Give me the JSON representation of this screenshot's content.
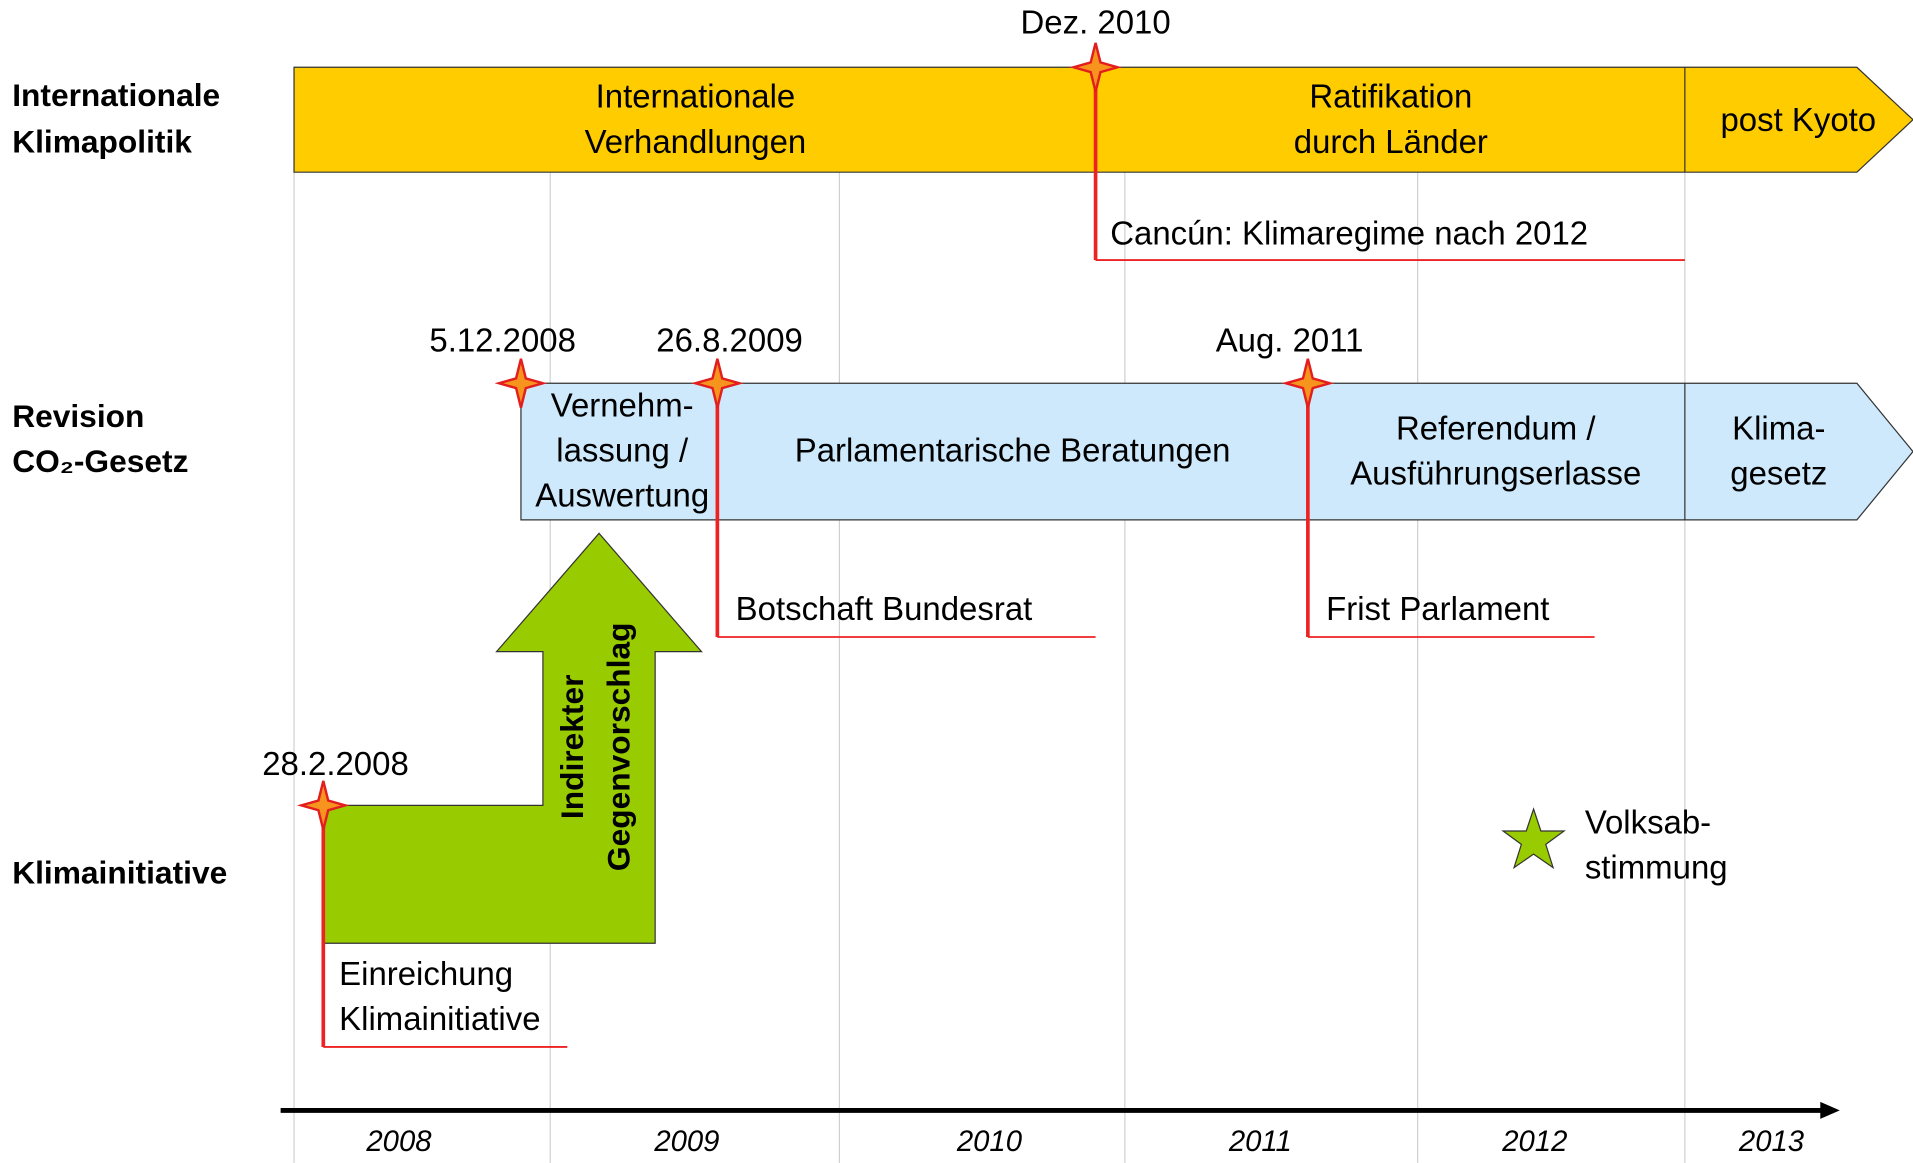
{
  "rows": [
    {
      "label": [
        "Internationale",
        "Klimapolitik"
      ]
    },
    {
      "label": [
        "Revision",
        "CO₂-Gesetz"
      ]
    },
    {
      "label": [
        "Klimainitiative"
      ]
    }
  ],
  "bar1": {
    "segments": [
      [
        "Internationale",
        "Verhandlungen"
      ],
      [
        "Ratifikation",
        "durch Länder"
      ],
      [
        "post Kyoto"
      ]
    ]
  },
  "bar2": {
    "segments": [
      [
        "Vernehm-",
        "lassung /",
        "Auswertung"
      ],
      [
        "Parlamentarische Beratungen"
      ],
      [
        "Referendum /",
        "Ausführungserlasse"
      ],
      [
        "Klima-",
        "gesetz"
      ]
    ]
  },
  "milestones": [
    {
      "date": "Dez. 2010",
      "note": [
        "Cancún: Klimaregime nach 2012"
      ]
    },
    {
      "date": "5.12.2008"
    },
    {
      "date": "26.8.2009",
      "note": [
        "Botschaft Bundesrat"
      ]
    },
    {
      "date": "Aug. 2011",
      "note": [
        "Frist Parlament"
      ]
    },
    {
      "date": "28.2.2008",
      "note": [
        "Einreichung",
        "Klimainitiative"
      ]
    }
  ],
  "arrow": {
    "label": [
      "Indirekter",
      "Gegenvorschlag"
    ]
  },
  "vote": {
    "label": [
      "Volksab-",
      "stimmung"
    ]
  },
  "years": [
    "2008",
    "2009",
    "2010",
    "2011",
    "2012",
    "2013"
  ]
}
